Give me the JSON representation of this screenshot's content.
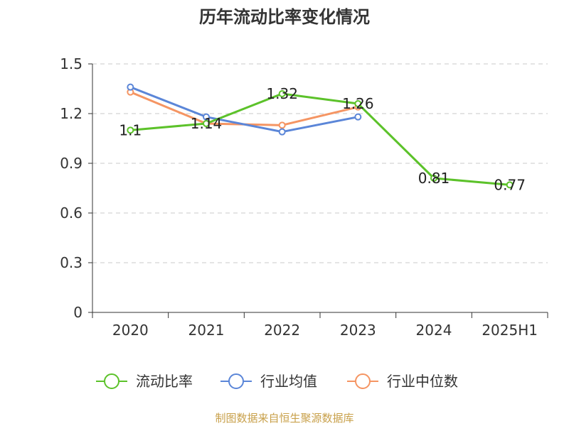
{
  "chart_data": {
    "type": "line",
    "title": "历年流动比率变化情况",
    "categories": [
      "2020",
      "2021",
      "2022",
      "2023",
      "2024",
      "2025H1"
    ],
    "ylim": [
      0,
      1.5
    ],
    "yticks": [
      "0",
      "0.3",
      "0.6",
      "0.9",
      "1.2",
      "1.5"
    ],
    "grid": true,
    "legend_position": "bottom",
    "series": [
      {
        "name": "流动比率",
        "values": [
          1.1,
          1.14,
          1.32,
          1.26,
          0.81,
          0.77
        ],
        "color": "#5cc22a",
        "labels": [
          "1.1",
          "1.14",
          "1.32",
          "1.26",
          "0.81",
          "0.77"
        ]
      },
      {
        "name": "行业均值",
        "values": [
          1.36,
          1.18,
          1.09,
          1.18,
          null,
          null
        ],
        "color": "#5b86d8"
      },
      {
        "name": "行业中位数",
        "values": [
          1.33,
          1.14,
          1.13,
          1.24,
          null,
          null
        ],
        "color": "#f59563"
      }
    ]
  },
  "source": "制图数据来自恒生聚源数据库"
}
